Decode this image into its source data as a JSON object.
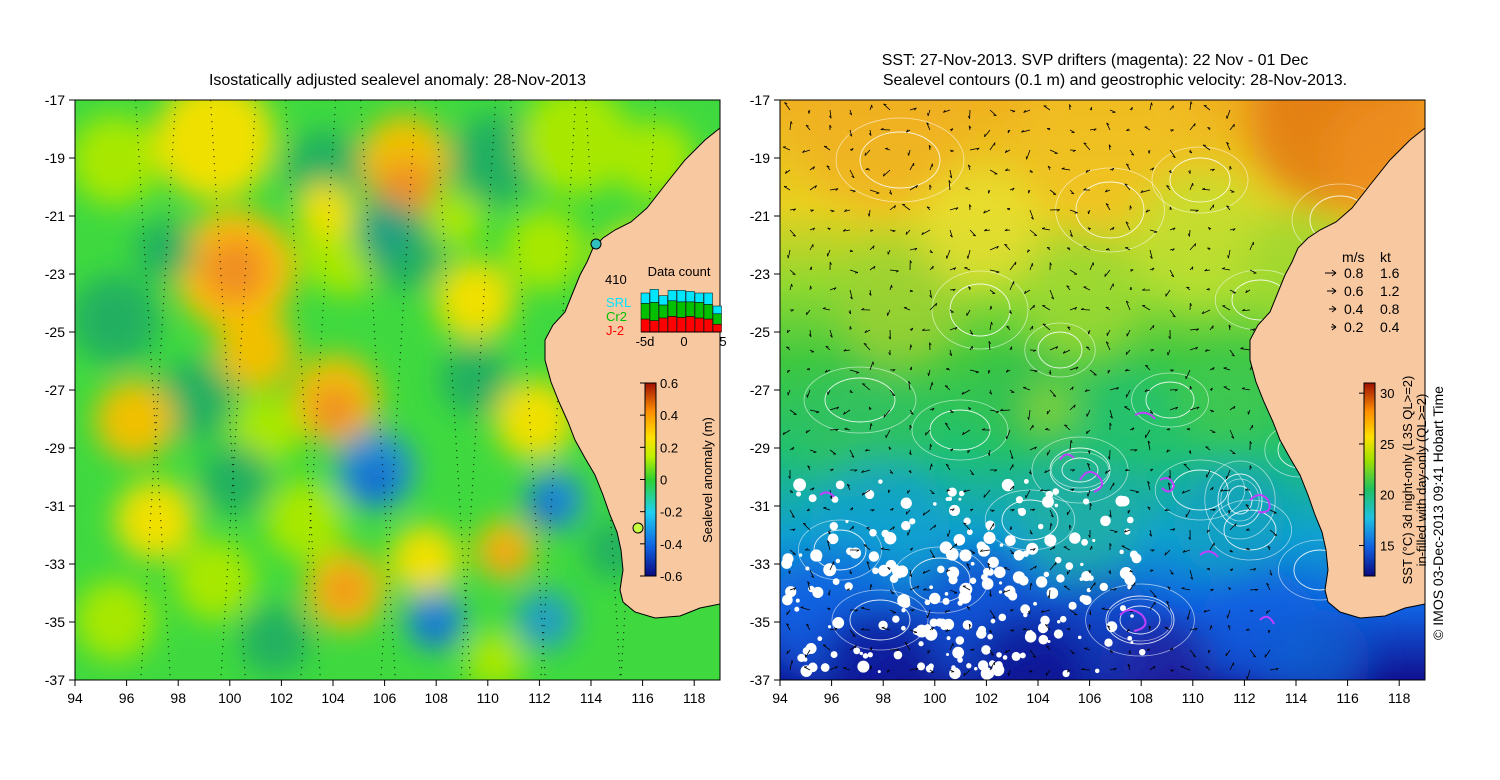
{
  "left_panel": {
    "title": "Isostatically adjusted sealevel anomaly: 28-Nov-2013",
    "colorbar": {
      "label": "Sealevel anomaly (m)",
      "ticks": [
        "0.6",
        "0.4",
        "0.2",
        "0",
        "-0.2",
        "-0.4",
        "-0.6"
      ],
      "range": [
        -0.6,
        0.6
      ]
    },
    "data_count": {
      "title": "Data count",
      "total": "410",
      "legend": [
        "SRL",
        "Cr2",
        "J-2"
      ],
      "legend_colors": [
        "#00e6ff",
        "#00c000",
        "#ff0000"
      ],
      "x_ticks": [
        "-5d",
        "0",
        "5"
      ],
      "bars": [
        {
          "srl": 0.2,
          "cr2": 0.3,
          "j2": 0.25
        },
        {
          "srl": 0.25,
          "cr2": 0.35,
          "j2": 0.22
        },
        {
          "srl": 0.18,
          "cr2": 0.25,
          "j2": 0.27
        },
        {
          "srl": 0.2,
          "cr2": 0.3,
          "j2": 0.3
        },
        {
          "srl": 0.22,
          "cr2": 0.3,
          "j2": 0.28
        },
        {
          "srl": 0.2,
          "cr2": 0.28,
          "j2": 0.3
        },
        {
          "srl": 0.18,
          "cr2": 0.3,
          "j2": 0.27
        },
        {
          "srl": 0.22,
          "cr2": 0.28,
          "j2": 0.25
        },
        {
          "srl": 0.15,
          "cr2": 0.2,
          "j2": 0.15
        }
      ]
    }
  },
  "right_panel": {
    "title_line1": "SST: 27-Nov-2013. SVP drifters (magenta): 22 Nov - 01 Dec",
    "title_line2": "Sealevel contours (0.1 m) and geostrophic velocity: 28-Nov-2013.",
    "colorbar": {
      "label_line1": "SST (°C) 3d night-only (L3S QL>=2)",
      "label_line2": "in-filled with day-only (QL>=2)",
      "ticks": [
        "30",
        "25",
        "20",
        "15"
      ],
      "range": [
        12,
        31
      ]
    },
    "velocity_legend": {
      "header_ms": "m/s",
      "header_kt": "kt",
      "rows": [
        {
          "ms": "0.8",
          "kt": "1.6"
        },
        {
          "ms": "0.6",
          "kt": "1.2"
        },
        {
          "ms": "0.4",
          "kt": "0.8"
        },
        {
          "ms": "0.2",
          "kt": "0.4"
        }
      ]
    },
    "credit": "© IMOS 03-Dec-2013 09:41 Hobart Time"
  },
  "axes": {
    "lon_ticks": [
      "94",
      "96",
      "98",
      "100",
      "102",
      "104",
      "106",
      "108",
      "110",
      "112",
      "114",
      "116",
      "118"
    ],
    "lat_ticks": [
      "-17",
      "-19",
      "-21",
      "-23",
      "-25",
      "-27",
      "-29",
      "-31",
      "-33",
      "-35",
      "-37"
    ]
  },
  "colors": {
    "land": "#f8c8a0",
    "sla_background": "#3fd93f",
    "sst_warm": "#f0a020",
    "sst_mid": "#30c050",
    "sst_cool": "#1080d0",
    "sst_cold": "#10108a",
    "contour": "#ffffff",
    "drifter": "#c040ff",
    "arrow": "#000000"
  }
}
